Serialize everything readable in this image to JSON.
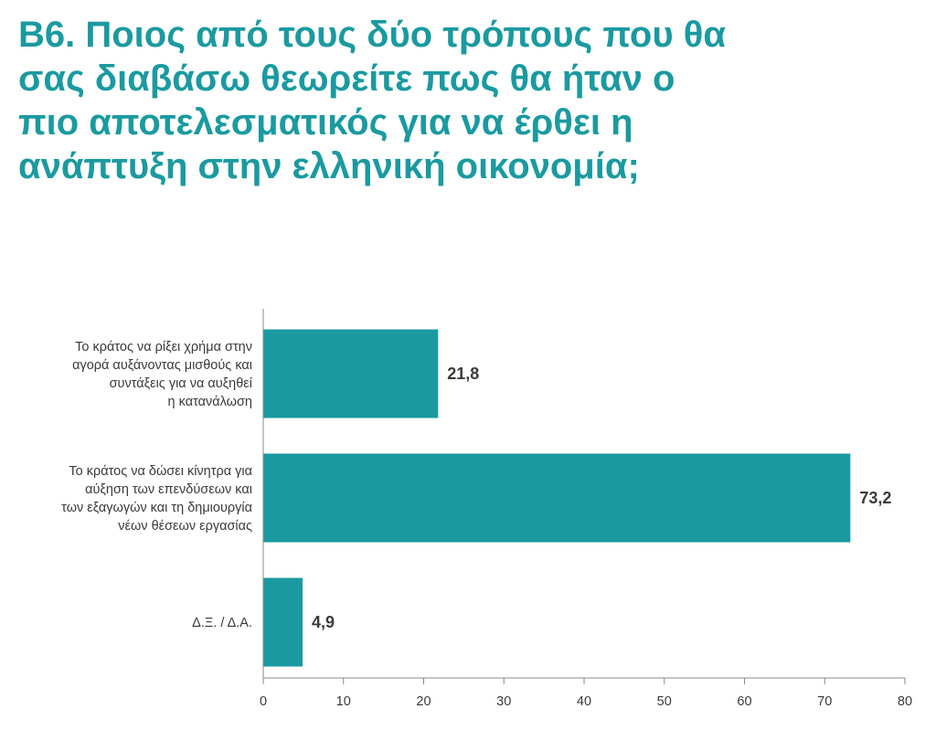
{
  "chart_data": {
    "type": "bar",
    "orientation": "horizontal",
    "title": "Β6. Ποιος από τους δύο τρόπους που θα σας διαβάσω θεωρείτε πως θα ήταν ο πιο αποτελεσματικός για να έρθει η ανάπτυξη στην ελληνική οικονομία;",
    "categories": [
      "Το κράτος να ρίξει χρήμα στην αγορά αυξάνοντας μισθούς και συντάξεις για να αυξηθεί η κατανάλωση",
      "Το κράτος να δώσει κίνητρα για αύξηση των επενδύσεων και των εξαγωγών και τη δημιουργία νέων θέσεων εργασίας",
      "Δ.Ξ. / Δ.Α."
    ],
    "category_lines": [
      [
        "Το κράτος να ρίξει χρήμα στην",
        "αγορά αυξάνοντας μισθούς και",
        "συντάξεις για να αυξηθεί",
        "η κατανάλωση"
      ],
      [
        "Το κράτος να δώσει κίνητρα για",
        "αύξηση των επενδύσεων και",
        "των εξαγωγών και τη δημιουργία",
        "νέων θέσεων εργασίας"
      ],
      [
        "Δ.Ξ. / Δ.Α."
      ]
    ],
    "values": [
      21.8,
      73.2,
      4.9
    ],
    "value_labels": [
      "21,8",
      "73,2",
      "4,9"
    ],
    "xlim": [
      0,
      80
    ],
    "xticks": [
      0,
      10,
      20,
      30,
      40,
      50,
      60,
      70,
      80
    ],
    "xtick_labels": [
      "0",
      "10",
      "20",
      "30",
      "40",
      "50",
      "60",
      "70",
      "80"
    ],
    "bar_color": "#1a9aa0",
    "grid": false
  }
}
